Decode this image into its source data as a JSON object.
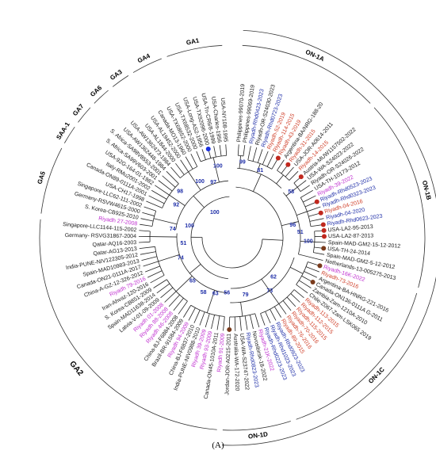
{
  "panel_label": "(A)",
  "colors": {
    "black": "#1a1a1a",
    "blue": "#1f2fa8",
    "red": "#d0402a",
    "magenta": "#c030d0",
    "node_red": "#c0281e",
    "node_brown": "#7a3b1c",
    "node_blue": "#1a30e0",
    "bootstrap": "#1f2fa8"
  },
  "groups": [
    {
      "label": "GA1",
      "style": "bold"
    },
    {
      "label": "GA4",
      "style": "bold"
    },
    {
      "label": "GA3",
      "style": "bold"
    },
    {
      "label": "GA6",
      "style": "bold"
    },
    {
      "label": "GA7",
      "style": "bold"
    },
    {
      "label": "SAA-1",
      "style": "bold"
    },
    {
      "label": "GA5",
      "style": "bold"
    },
    {
      "label": "GA2",
      "style": "large"
    },
    {
      "label": "ON-1A",
      "style": "bold"
    },
    {
      "label": "ON-1B",
      "style": "bold"
    },
    {
      "label": "ON-1",
      "style": "large"
    },
    {
      "label": "ON-1C",
      "style": "bold"
    },
    {
      "label": "ON-1D",
      "style": "bold"
    }
  ],
  "bootstrap_values": [
    "99",
    "81",
    "58",
    "100",
    "98",
    "92",
    "74",
    "100",
    "100",
    "97",
    "100",
    "51",
    "74",
    "65",
    "58",
    "63",
    "56",
    "79",
    "62",
    "73",
    "96",
    "51"
  ],
  "taxa": [
    {
      "name": "Philippines-99070-2019",
      "color": "black"
    },
    {
      "name": "Philippines-99069-2019",
      "color": "black"
    },
    {
      "name": "Riyadh-Rhd0423-2023",
      "color": "blue"
    },
    {
      "name": "Riyadh-OR-S24030-2023",
      "color": "black"
    },
    {
      "name": "Riyadh-Rhd0723-2023",
      "color": "blue"
    },
    {
      "name": "Riyadh-52-2019",
      "color": "red"
    },
    {
      "name": "Riyadh-114-2015",
      "color": "red"
    },
    {
      "name": "Riyadh-43-2019",
      "color": "red"
    },
    {
      "name": "Argentina-BA/NRG-188-20",
      "color": "black"
    },
    {
      "name": "Riyadh-31-2015",
      "color": "red"
    },
    {
      "name": "USA-JOR-A0614-2011",
      "color": "black"
    },
    {
      "name": "Riyadh-14-2015",
      "color": "red"
    },
    {
      "name": "Austria-MUW1157502-2022",
      "color": "black"
    },
    {
      "name": "USA-WA-S24023-2022",
      "color": "black"
    },
    {
      "name": "Riyadh-OR-S24026-2022",
      "color": "black"
    },
    {
      "name": "USA-TH-10173-2012",
      "color": "black"
    },
    {
      "name": "Riyadh-39-2022",
      "color": "magenta"
    },
    {
      "name": "Riyadh-Rhd0523-2023",
      "color": "blue"
    },
    {
      "name": "Riyadh-Rhd0323-2023",
      "color": "blue"
    },
    {
      "name": "Riyadh-04-2016",
      "color": "red"
    },
    {
      "name": "Riyadh-04-2020",
      "color": "blue"
    },
    {
      "name": "Riyadh-Rhd0623-2023",
      "color": "blue"
    },
    {
      "name": "USA-LA2-95-2013",
      "color": "black"
    },
    {
      "name": "USA-LA2-87-2013",
      "color": "black"
    },
    {
      "name": "Spain-MAD-GM2-15-12-2012",
      "color": "black"
    },
    {
      "name": "USA-TH-24-2014",
      "color": "black"
    },
    {
      "name": "Spain-MAD-GM2-5-12-2012",
      "color": "black"
    },
    {
      "name": "Netherlands-13-005275-2013",
      "color": "black"
    },
    {
      "name": "Riyadh-16K-2022",
      "color": "magenta"
    },
    {
      "name": "Riyadh-73-2016",
      "color": "red"
    },
    {
      "name": "Argentina-BA-HNRG-221-2016",
      "color": "black"
    },
    {
      "name": "Canada-ON136-0111A G-2011",
      "color": "black"
    },
    {
      "name": "Zambia-Zam-1210A-2010",
      "color": "black"
    },
    {
      "name": "Chile-Z067-Zam-LSK065 2019",
      "color": "black"
    },
    {
      "name": "Riyadh-113-2015",
      "color": "red"
    },
    {
      "name": "Riyadh-112-2015",
      "color": "red"
    },
    {
      "name": "Riyadh-115-2015",
      "color": "red"
    },
    {
      "name": "Riyadh-70-2016",
      "color": "red"
    },
    {
      "name": "Riyadh-76-2016",
      "color": "red"
    },
    {
      "name": "Riyadh-89-2015",
      "color": "red"
    },
    {
      "name": "Riyadh-Rhd0923-2023",
      "color": "blue"
    },
    {
      "name": "Riyadh-Rhd1023-2023",
      "color": "blue"
    },
    {
      "name": "Riyadh-Rhd0223-2023",
      "color": "blue"
    },
    {
      "name": "Riyadh-21K-2022",
      "color": "magenta"
    },
    {
      "name": "Novosibirsk-18-2022",
      "color": "black"
    },
    {
      "name": "Riyadh-Rhd0823-2023",
      "color": "blue"
    },
    {
      "name": "USA-WA-S23747-2022",
      "color": "black"
    },
    {
      "name": "Australia-WA-172-2020",
      "color": "black"
    },
    {
      "name": "Jordan-JOR-A0215-2011",
      "color": "black"
    },
    {
      "name": "Riyadh 91-2009",
      "color": "magenta"
    },
    {
      "name": "Canada-ON45-1010A-2011",
      "color": "black"
    },
    {
      "name": "Riyadh 93-2009",
      "color": "magenta"
    },
    {
      "name": "Riyadh 39-2009",
      "color": "magenta"
    },
    {
      "name": "India-PUNE-NIV0988-2010",
      "color": "black"
    },
    {
      "name": "China-BJ-F6837-2010",
      "color": "black"
    },
    {
      "name": "Riyadh 94-2009",
      "color": "magenta"
    },
    {
      "name": "Brazil-BR-91584-2009",
      "color": "black"
    },
    {
      "name": "China-BJ-F6884-2008",
      "color": "black"
    },
    {
      "name": "Riyadh 46-2008",
      "color": "magenta"
    },
    {
      "name": "Riyadh 88-2008",
      "color": "magenta"
    },
    {
      "name": "Riyadh 01-2008",
      "color": "magenta"
    },
    {
      "name": "Latvia-V-01-09-2009",
      "color": "black"
    },
    {
      "name": "Spain-MAD11638-2014",
      "color": "black"
    },
    {
      "name": "S. Korea-CB851-2009",
      "color": "black"
    },
    {
      "name": "Iran-Ahvaz-120-2016",
      "color": "black"
    },
    {
      "name": "Riyadh 79-2016",
      "color": "magenta"
    },
    {
      "name": "China-A-GZ-12-326-2012",
      "color": "black"
    },
    {
      "name": "Canada-ON21-0111A-2017",
      "color": "black"
    },
    {
      "name": "Spain-MAD10983-2013",
      "color": "black"
    },
    {
      "name": "India-PUNE-NIV122305-2012",
      "color": "black"
    },
    {
      "name": "Qatar-AG13-2013",
      "color": "black"
    },
    {
      "name": "Qatar-AQ16-2003",
      "color": "black"
    },
    {
      "name": "Germany- RSVG31867-2004",
      "color": "black"
    },
    {
      "name": "Singapore-LLC1144-115-2002",
      "color": "black"
    },
    {
      "name": "Riyadh 27-2008",
      "color": "magenta"
    },
    {
      "name": "S. Korea-CB925-2010",
      "color": "black"
    },
    {
      "name": "Germany-RSVW4615-2000",
      "color": "black"
    },
    {
      "name": "Singapore-LLC62-111-2002",
      "color": "black"
    },
    {
      "name": "USA-CH17-1998",
      "color": "black"
    },
    {
      "name": "Canada-ON89-0111A-2001",
      "color": "black"
    },
    {
      "name": "Italy-RMu2001-2002",
      "color": "black"
    },
    {
      "name": "USA-92G-164-01-1982",
      "color": "black"
    },
    {
      "name": "S. Africa-SA99V603-2001",
      "color": "black"
    },
    {
      "name": "S. Africa-SA98V8553-2001",
      "color": "black"
    },
    {
      "name": "USA-AW1362448-1984",
      "color": "black"
    },
    {
      "name": "USA-AW1362473-1984",
      "color": "black"
    },
    {
      "name": "USA-AL1844-2000",
      "color": "black"
    },
    {
      "name": "USA-AL19452-2000",
      "color": "black"
    },
    {
      "name": "Canada-MO13-1960",
      "color": "black"
    },
    {
      "name": "USA-TX68652-2000",
      "color": "black"
    },
    {
      "name": "USA-TX68532-2000",
      "color": "black"
    },
    {
      "name": "USA-Long-AS2-1956",
      "color": "black"
    },
    {
      "name": "USA-TX92096-2000",
      "color": "black"
    },
    {
      "name": "USA-Tn-CR6/8-1999",
      "color": "black"
    },
    {
      "name": "USA-Charles-1956",
      "color": "black"
    },
    {
      "name": "USA-NY108-1995",
      "color": "black"
    }
  ]
}
